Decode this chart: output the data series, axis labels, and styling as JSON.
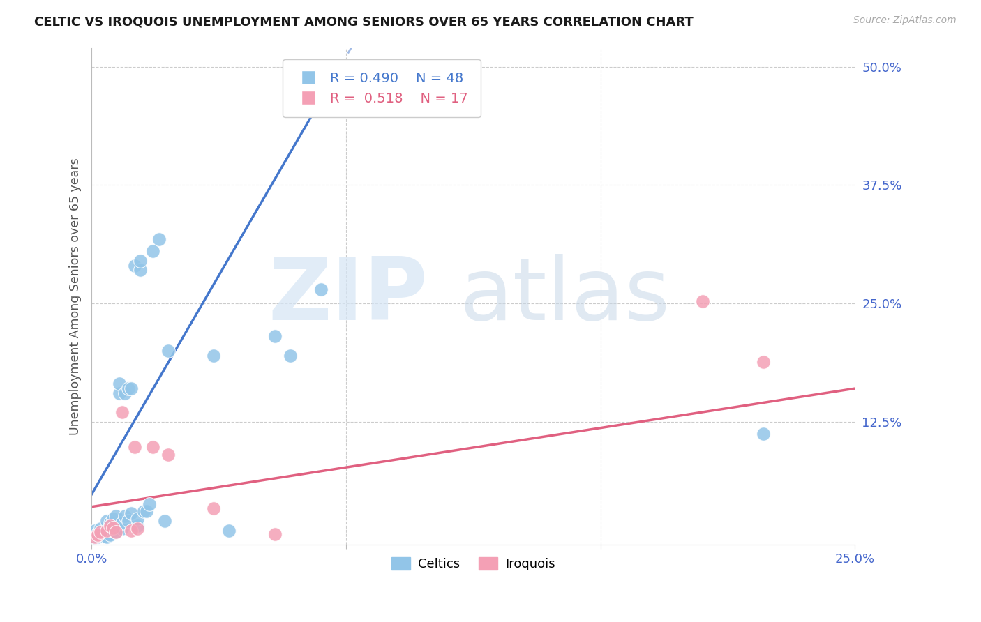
{
  "title": "CELTIC VS IROQUOIS UNEMPLOYMENT AMONG SENIORS OVER 65 YEARS CORRELATION CHART",
  "source": "Source: ZipAtlas.com",
  "ylabel": "Unemployment Among Seniors over 65 years",
  "xlim": [
    0.0,
    0.25
  ],
  "ylim": [
    -0.005,
    0.52
  ],
  "celtics_color": "#92c5e8",
  "iroquois_color": "#f4a0b5",
  "blue_line_color": "#4477cc",
  "pink_line_color": "#e06080",
  "legend_celtics_R": "0.490",
  "legend_celtics_N": "48",
  "legend_iroquois_R": "0.518",
  "legend_iroquois_N": "17",
  "background_color": "#ffffff",
  "celtics_x": [
    0.001,
    0.001,
    0.001,
    0.001,
    0.002,
    0.002,
    0.003,
    0.003,
    0.004,
    0.004,
    0.005,
    0.005,
    0.005,
    0.006,
    0.006,
    0.007,
    0.007,
    0.007,
    0.008,
    0.008,
    0.009,
    0.009,
    0.01,
    0.01,
    0.011,
    0.011,
    0.012,
    0.012,
    0.013,
    0.013,
    0.014,
    0.015,
    0.015,
    0.016,
    0.016,
    0.017,
    0.018,
    0.019,
    0.02,
    0.022,
    0.024,
    0.025,
    0.04,
    0.045,
    0.06,
    0.065,
    0.075,
    0.22
  ],
  "celtics_y": [
    0.002,
    0.005,
    0.007,
    0.01,
    0.003,
    0.007,
    0.005,
    0.012,
    0.004,
    0.008,
    0.003,
    0.015,
    0.02,
    0.005,
    0.018,
    0.01,
    0.015,
    0.022,
    0.008,
    0.025,
    0.155,
    0.165,
    0.012,
    0.018,
    0.025,
    0.155,
    0.02,
    0.16,
    0.028,
    0.16,
    0.29,
    0.015,
    0.022,
    0.285,
    0.295,
    0.03,
    0.03,
    0.038,
    0.305,
    0.318,
    0.02,
    0.2,
    0.195,
    0.01,
    0.215,
    0.195,
    0.265,
    0.112
  ],
  "iroquois_x": [
    0.001,
    0.002,
    0.003,
    0.005,
    0.006,
    0.007,
    0.008,
    0.01,
    0.013,
    0.014,
    0.015,
    0.02,
    0.025,
    0.04,
    0.06,
    0.2,
    0.22
  ],
  "iroquois_y": [
    0.003,
    0.005,
    0.008,
    0.01,
    0.015,
    0.013,
    0.008,
    0.135,
    0.01,
    0.098,
    0.012,
    0.098,
    0.09,
    0.033,
    0.006,
    0.252,
    0.188
  ],
  "blue_line_x0": 0.0,
  "blue_line_y0": 0.048,
  "blue_line_x1": 0.085,
  "blue_line_y1": 0.52,
  "pink_line_x0": 0.0,
  "pink_line_y0": 0.035,
  "pink_line_x1": 0.25,
  "pink_line_y1": 0.16
}
